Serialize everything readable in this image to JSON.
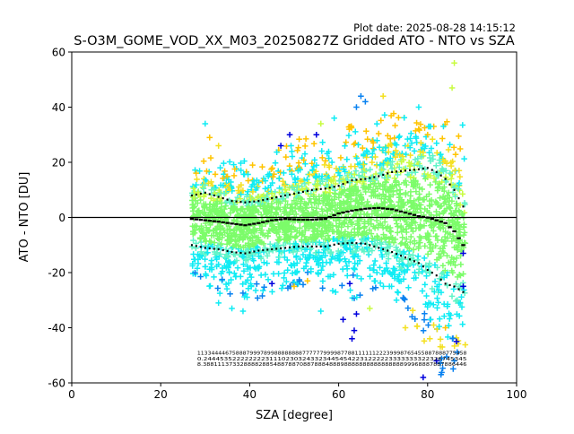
{
  "plot_date": "Plot date: 2025-08-28 14:15:12",
  "chart_data": {
    "type": "scatter",
    "title": "S-O3M_GOME_VOD_XX_M03_20250827Z Gridded ATO - NTO vs SZA",
    "xlabel": "SZA [degree]",
    "ylabel": "ATO - NTO [DU]",
    "xlim": [
      0,
      100
    ],
    "ylim": [
      -60,
      60
    ],
    "x_ticks": [
      "0",
      "20",
      "40",
      "60",
      "80",
      "100"
    ],
    "y_ticks": [
      "-60",
      "-40",
      "-20",
      "0",
      "20",
      "40",
      "60"
    ],
    "grid": false,
    "legend": "none",
    "zero_line": 0,
    "marker": "+",
    "colors": {
      "core": "#7cfc6a",
      "cyan": "#10ecf4",
      "light_cyan": "#60f4c8",
      "blue": "#0a82f0",
      "dark_blue": "#0000dd",
      "yellow": "#f4e020",
      "orange": "#ffc400",
      "lime": "#c8fc40",
      "mean": "#000000"
    },
    "mean_line": {
      "x": [
        27,
        30,
        33,
        36,
        39,
        42,
        45,
        48,
        51,
        54,
        57,
        60,
        63,
        66,
        69,
        72,
        75,
        78,
        80,
        82,
        84,
        86,
        88
      ],
      "y": [
        -0.5,
        -1,
        -1.5,
        -2.2,
        -2.8,
        -2,
        -1,
        -0.5,
        -0.8,
        -0.8,
        -0.5,
        1.5,
        2.5,
        3.2,
        3.5,
        3,
        1.8,
        0.5,
        0,
        -1,
        -2,
        -5,
        -10
      ]
    },
    "upper_std_line": {
      "x": [
        27,
        30,
        33,
        36,
        39,
        42,
        45,
        48,
        51,
        54,
        57,
        60,
        63,
        66,
        69,
        72,
        75,
        78,
        80,
        82,
        84,
        86,
        88
      ],
      "y": [
        8,
        9,
        7.5,
        6,
        5.5,
        6,
        7,
        8,
        9,
        10,
        10.5,
        11.5,
        13.5,
        14,
        15,
        16.5,
        17,
        17.5,
        18,
        16.5,
        14,
        10,
        4
      ]
    },
    "lower_std_line": {
      "x": [
        27,
        30,
        33,
        36,
        39,
        42,
        45,
        48,
        51,
        54,
        57,
        60,
        63,
        66,
        69,
        72,
        75,
        78,
        80,
        82,
        84,
        86,
        88
      ],
      "y": [
        -10,
        -11,
        -11.5,
        -12.5,
        -13,
        -12,
        -11.5,
        -11,
        -10.5,
        -10.5,
        -10.5,
        -9.5,
        -9.2,
        -9.5,
        -11,
        -12.5,
        -14.5,
        -16.5,
        -19,
        -21,
        -24,
        -25,
        -27
      ]
    },
    "envelope": {
      "x": [
        27,
        30,
        33,
        36,
        39,
        42,
        45,
        48,
        51,
        54,
        57,
        60,
        63,
        66,
        69,
        72,
        75,
        78,
        80,
        82,
        84,
        86,
        88
      ],
      "top": [
        18,
        22,
        21,
        20,
        21,
        24,
        26,
        28,
        30,
        30,
        32,
        33,
        34,
        36,
        40,
        38,
        36,
        34,
        33,
        33,
        36,
        40,
        35
      ],
      "bottom": [
        -20,
        -24,
        -28,
        -30,
        -32,
        -29,
        -27,
        -26,
        -24,
        -25,
        -27,
        -28,
        -30,
        -27,
        -25,
        -25,
        -30,
        -45,
        -50,
        -55,
        -58,
        -58,
        -55
      ]
    },
    "outliers": [
      {
        "x": 63.5,
        "y": -41,
        "c": "dark_blue"
      },
      {
        "x": 63.0,
        "y": -44,
        "c": "dark_blue"
      },
      {
        "x": 64.0,
        "y": -35,
        "c": "dark_blue"
      },
      {
        "x": 61.0,
        "y": -37,
        "c": "dark_blue"
      },
      {
        "x": 62.5,
        "y": -24,
        "c": "dark_blue"
      },
      {
        "x": 49.0,
        "y": 30,
        "c": "dark_blue"
      },
      {
        "x": 47.0,
        "y": 26,
        "c": "dark_blue"
      },
      {
        "x": 55.0,
        "y": 30,
        "c": "dark_blue"
      },
      {
        "x": 45.0,
        "y": -24,
        "c": "dark_blue"
      },
      {
        "x": 88.0,
        "y": -13,
        "c": "dark_blue"
      },
      {
        "x": 88.0,
        "y": -25,
        "c": "dark_blue"
      },
      {
        "x": 86.5,
        "y": -45,
        "c": "dark_blue"
      },
      {
        "x": 82.0,
        "y": -52,
        "c": "dark_blue"
      },
      {
        "x": 79.0,
        "y": -58,
        "c": "dark_blue"
      },
      {
        "x": 30.0,
        "y": 34,
        "c": "cyan"
      },
      {
        "x": 65.0,
        "y": 44,
        "c": "blue"
      },
      {
        "x": 64.0,
        "y": 40,
        "c": "blue"
      },
      {
        "x": 66.0,
        "y": 42,
        "c": "blue"
      },
      {
        "x": 78.0,
        "y": 40,
        "c": "cyan"
      },
      {
        "x": 86.0,
        "y": 56,
        "c": "lime"
      },
      {
        "x": 85.5,
        "y": 47,
        "c": "lime"
      },
      {
        "x": 70.0,
        "y": 44,
        "c": "yellow"
      },
      {
        "x": 80.0,
        "y": 30,
        "c": "orange"
      },
      {
        "x": 78.5,
        "y": 27,
        "c": "yellow"
      },
      {
        "x": 31.0,
        "y": 29,
        "c": "orange"
      },
      {
        "x": 33.0,
        "y": 26,
        "c": "yellow"
      },
      {
        "x": 59.0,
        "y": 36,
        "c": "cyan"
      },
      {
        "x": 56.0,
        "y": 34,
        "c": "lime"
      },
      {
        "x": 33.0,
        "y": -31,
        "c": "cyan"
      },
      {
        "x": 36.0,
        "y": -33,
        "c": "cyan"
      },
      {
        "x": 38.5,
        "y": -34,
        "c": "cyan"
      },
      {
        "x": 56.0,
        "y": -34,
        "c": "cyan"
      },
      {
        "x": 53.0,
        "y": -23,
        "c": "orange"
      },
      {
        "x": 50.0,
        "y": -25,
        "c": "orange"
      },
      {
        "x": 67.0,
        "y": -33,
        "c": "lime"
      },
      {
        "x": 75.0,
        "y": -40,
        "c": "yellow"
      },
      {
        "x": 80.5,
        "y": -44,
        "c": "yellow"
      },
      {
        "x": 84.0,
        "y": -40,
        "c": "orange"
      },
      {
        "x": 86.0,
        "y": -52,
        "c": "blue"
      },
      {
        "x": 83.0,
        "y": -57,
        "c": "blue"
      },
      {
        "x": 76.5,
        "y": -36,
        "c": "blue"
      },
      {
        "x": 73.0,
        "y": -30,
        "c": "cyan"
      }
    ],
    "count_rows": [
      {
        "y": -49.8,
        "text": "11334444675888799978998888888877777799998778811111122239998765455887888775458"
      },
      {
        "y": -51.8,
        "text": "0.2444535222222223111023032433234454542231222223333333322326745345"
      },
      {
        "y": -53.8,
        "text": "8.38811137332888828854887887088788848889888888888888888899968887887886446"
      }
    ]
  }
}
